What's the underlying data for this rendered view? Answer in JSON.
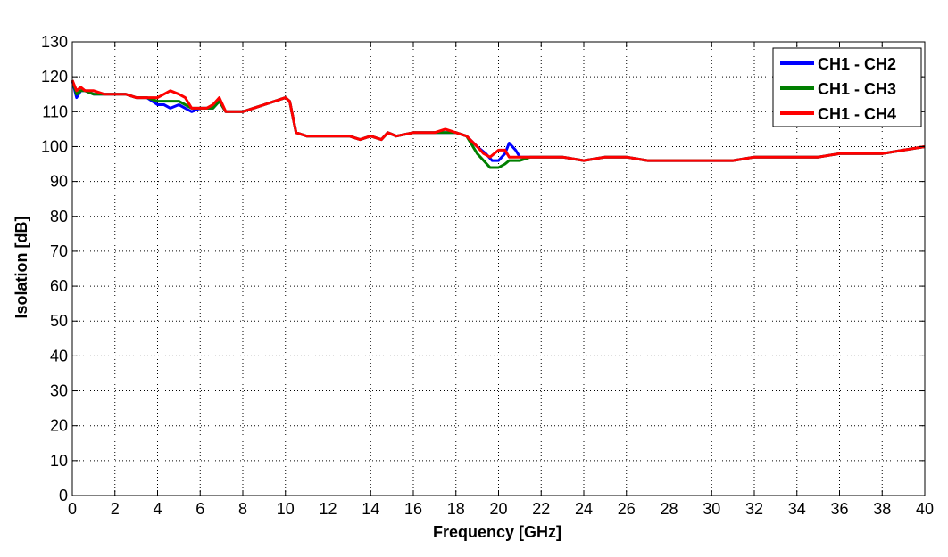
{
  "chart_data": {
    "type": "line",
    "title": "",
    "xlabel": "Frequency [GHz]",
    "ylabel": "Isolation [dB]",
    "xlim": [
      0,
      40
    ],
    "ylim": [
      0,
      130
    ],
    "xticks": [
      0,
      2,
      4,
      6,
      8,
      10,
      12,
      14,
      16,
      18,
      20,
      22,
      24,
      26,
      28,
      30,
      32,
      34,
      36,
      38,
      40
    ],
    "yticks": [
      0,
      10,
      20,
      30,
      40,
      50,
      60,
      70,
      80,
      90,
      100,
      110,
      120,
      130
    ],
    "grid": true,
    "legend_position": "top-right",
    "series": [
      {
        "name": "CH1 - CH2",
        "color": "#0000ff",
        "x": [
          0,
          0.2,
          0.4,
          0.6,
          1,
          1.5,
          2,
          2.5,
          3,
          3.5,
          4,
          4.3,
          4.6,
          5,
          5.3,
          5.6,
          6,
          6.3,
          6.6,
          6.9,
          7.2,
          7.5,
          8,
          8.5,
          9,
          9.5,
          10,
          10.2,
          10.5,
          11,
          12,
          13,
          13.5,
          14,
          14.5,
          14.8,
          15.2,
          16,
          16.5,
          17,
          17.5,
          18,
          18.5,
          19,
          19.4,
          19.7,
          20,
          20.3,
          20.5,
          20.8,
          21,
          21.5,
          22,
          23,
          24,
          25,
          26,
          27,
          28,
          29,
          30,
          31,
          32,
          33,
          34,
          35,
          36,
          37,
          38,
          39,
          40
        ],
        "y": [
          119,
          114,
          116,
          116,
          115,
          115,
          115,
          115,
          114,
          114,
          112,
          112,
          111,
          112,
          111,
          110,
          111,
          111,
          111,
          113,
          110,
          110,
          110,
          111,
          112,
          113,
          114,
          113,
          104,
          103,
          103,
          103,
          102,
          103,
          102,
          104,
          103,
          104,
          104,
          104,
          104,
          104,
          103,
          100,
          98,
          96,
          96,
          98,
          101,
          99,
          97,
          97,
          97,
          97,
          96,
          97,
          97,
          96,
          96,
          96,
          96,
          96,
          97,
          97,
          97,
          97,
          98,
          98,
          98,
          99,
          100
        ]
      },
      {
        "name": "CH1 - CH3",
        "color": "#007f00",
        "x": [
          0,
          0.2,
          0.4,
          0.6,
          1,
          1.5,
          2,
          2.5,
          3,
          3.5,
          4,
          4.3,
          4.6,
          5,
          5.3,
          5.6,
          6,
          6.3,
          6.6,
          6.9,
          7.2,
          7.5,
          8,
          8.5,
          9,
          9.5,
          10,
          10.2,
          10.5,
          11,
          12,
          13,
          13.5,
          14,
          14.5,
          14.8,
          15.2,
          16,
          16.5,
          17,
          17.5,
          18,
          18.5,
          19,
          19.3,
          19.6,
          20,
          20.3,
          20.5,
          20.8,
          21,
          21.5,
          22,
          23,
          24,
          25,
          26,
          27,
          28,
          29,
          30,
          31,
          32,
          33,
          34,
          35,
          36,
          37,
          38,
          39,
          40
        ],
        "y": [
          119,
          115,
          116,
          116,
          115,
          115,
          115,
          115,
          114,
          114,
          113,
          113,
          113,
          113,
          112,
          111,
          111,
          111,
          111,
          113,
          110,
          110,
          110,
          111,
          112,
          113,
          114,
          113,
          104,
          103,
          103,
          103,
          102,
          103,
          102,
          104,
          103,
          104,
          104,
          104,
          104,
          104,
          103,
          98,
          96,
          94,
          94,
          95,
          96,
          96,
          96,
          97,
          97,
          97,
          96,
          97,
          97,
          96,
          96,
          96,
          96,
          96,
          97,
          97,
          97,
          97,
          98,
          98,
          98,
          99,
          100
        ]
      },
      {
        "name": "CH1 - CH4",
        "color": "#ff0000",
        "x": [
          0,
          0.2,
          0.4,
          0.6,
          1,
          1.5,
          2,
          2.5,
          3,
          3.5,
          4,
          4.3,
          4.6,
          5,
          5.3,
          5.6,
          6,
          6.3,
          6.6,
          6.9,
          7.2,
          7.5,
          8,
          8.5,
          9,
          9.5,
          10,
          10.2,
          10.5,
          11,
          12,
          13,
          13.5,
          14,
          14.5,
          14.8,
          15.2,
          16,
          16.5,
          17,
          17.5,
          18,
          18.5,
          19,
          19.3,
          19.6,
          20,
          20.3,
          20.5,
          20.8,
          21,
          21.5,
          22,
          23,
          24,
          25,
          26,
          27,
          28,
          29,
          30,
          31,
          32,
          33,
          34,
          35,
          36,
          37,
          38,
          39,
          40
        ],
        "y": [
          119,
          116,
          117,
          116,
          116,
          115,
          115,
          115,
          114,
          114,
          114,
          115,
          116,
          115,
          114,
          111,
          111,
          111,
          112,
          114,
          110,
          110,
          110,
          111,
          112,
          113,
          114,
          113,
          104,
          103,
          103,
          103,
          102,
          103,
          102,
          104,
          103,
          104,
          104,
          104,
          105,
          104,
          103,
          100,
          98,
          97,
          99,
          99,
          97,
          97,
          97,
          97,
          97,
          97,
          96,
          97,
          97,
          96,
          96,
          96,
          96,
          96,
          97,
          97,
          97,
          97,
          98,
          98,
          98,
          99,
          100
        ]
      }
    ]
  }
}
